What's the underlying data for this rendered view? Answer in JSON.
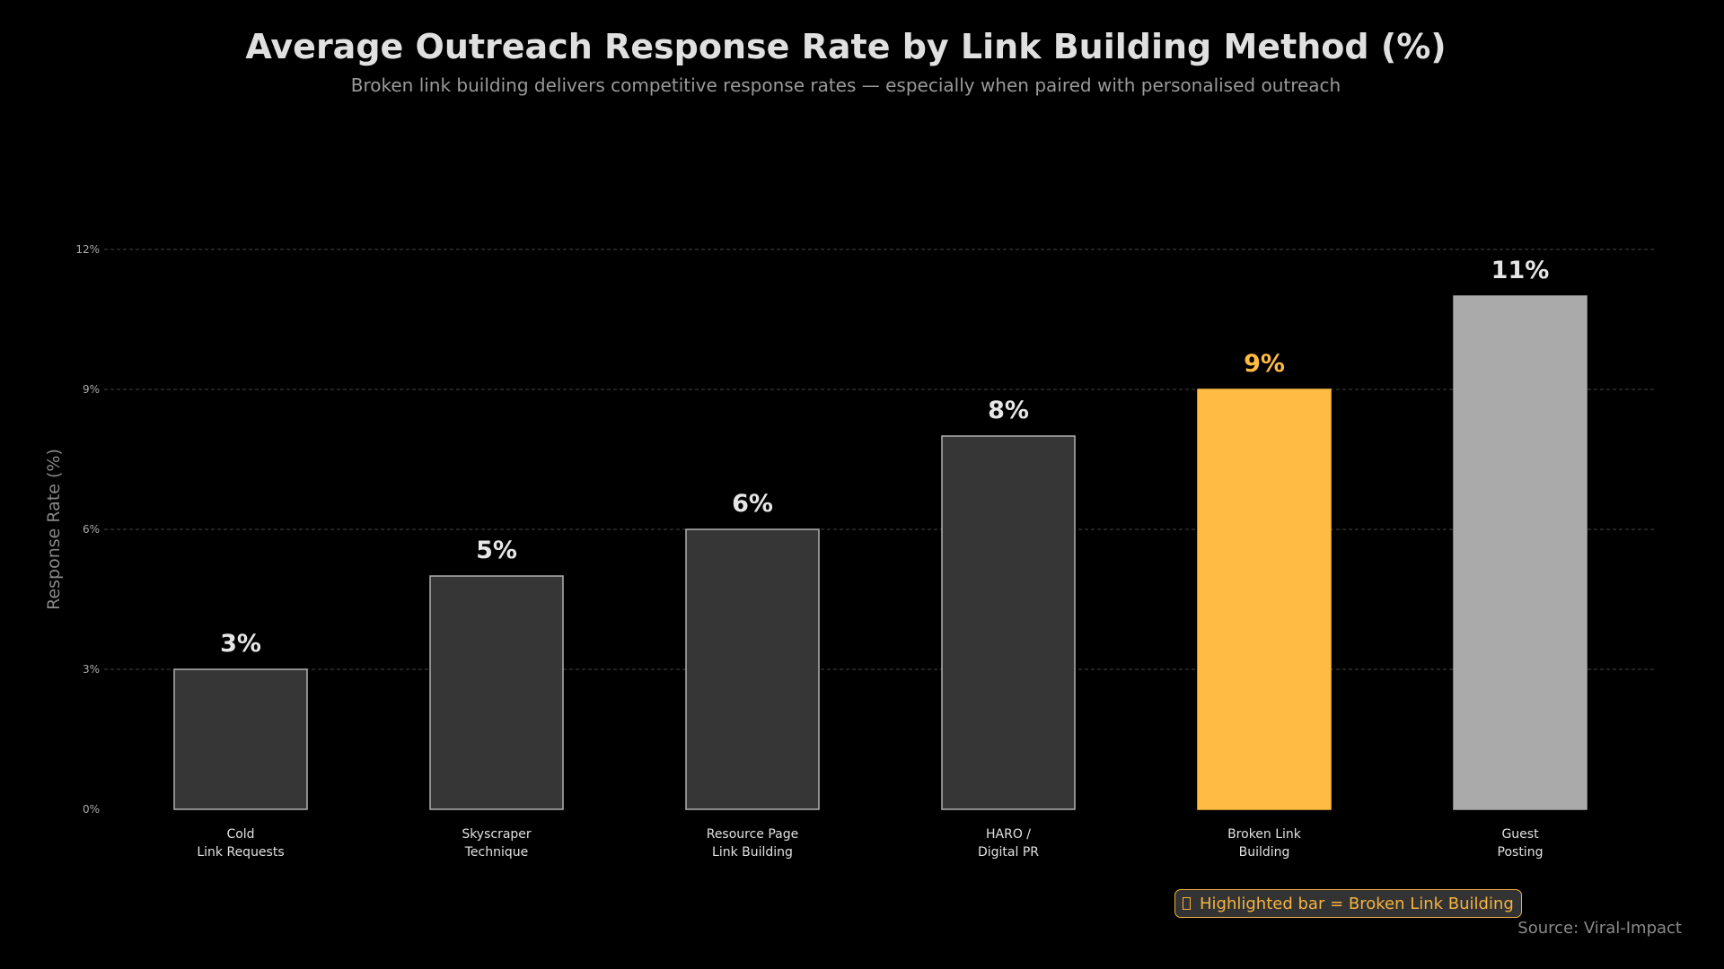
{
  "chart_data": {
    "type": "bar",
    "title": "Average Outreach Response Rate by Link Building Method (%)",
    "subtitle": "Broken link building delivers competitive response rates — especially when paired with personalised outreach",
    "ylabel": "Response Rate (%)",
    "xlabel": "",
    "ylim": [
      0,
      12
    ],
    "yticks": [
      "0%",
      "3%",
      "6%",
      "9%",
      "12%"
    ],
    "grid": true,
    "categories": [
      [
        "Cold",
        "Link Requests"
      ],
      [
        "Skyscraper",
        "Technique"
      ],
      [
        "Resource Page",
        "Link Building"
      ],
      [
        "HARO /",
        "Digital PR"
      ],
      [
        "Broken Link",
        "Building"
      ],
      [
        "Guest",
        "Posting"
      ]
    ],
    "values": [
      3,
      5,
      6,
      8,
      9,
      11
    ],
    "data_labels": [
      "3%",
      "5%",
      "6%",
      "8%",
      "9%",
      "11%"
    ],
    "bar_colors": [
      "#363636",
      "#363636",
      "#363636",
      "#363636",
      "#ffbb44",
      "#aaaaaa"
    ],
    "bar_outlines": [
      "#b0b0b0",
      "#b0b0b0",
      "#b0b0b0",
      "#b0b0b0",
      "#ffbb44",
      "#aaaaaa"
    ],
    "label_colors": [
      "#e6e6e6",
      "#e6e6e6",
      "#e6e6e6",
      "#e6e6e6",
      "#ffbb44",
      "#e6e6e6"
    ],
    "highlight_color": "#f5b342",
    "legend": {
      "icon": "missing-glyph-box",
      "text": "Highlighted bar = Broken Link Building",
      "placement": "bottom-right"
    },
    "source": "Source: Viral-Impact"
  }
}
